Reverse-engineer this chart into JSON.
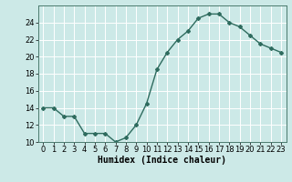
{
  "x": [
    0,
    1,
    2,
    3,
    4,
    5,
    6,
    7,
    8,
    9,
    10,
    11,
    12,
    13,
    14,
    15,
    16,
    17,
    18,
    19,
    20,
    21,
    22,
    23
  ],
  "y": [
    14,
    14,
    13,
    13,
    11,
    11,
    11,
    10,
    10.5,
    12,
    14.5,
    18.5,
    20.5,
    22,
    23,
    24.5,
    25,
    25,
    24,
    23.5,
    22.5,
    21.5,
    21,
    20.5
  ],
  "line_color": "#2e6b5e",
  "marker": "D",
  "marker_size": 2.0,
  "bg_color": "#cce9e7",
  "grid_color": "#ffffff",
  "xlabel": "Humidex (Indice chaleur)",
  "ylabel": "",
  "ylim": [
    10,
    26
  ],
  "xlim": [
    -0.5,
    23.5
  ],
  "yticks": [
    10,
    12,
    14,
    16,
    18,
    20,
    22,
    24
  ],
  "xticks": [
    0,
    1,
    2,
    3,
    4,
    5,
    6,
    7,
    8,
    9,
    10,
    11,
    12,
    13,
    14,
    15,
    16,
    17,
    18,
    19,
    20,
    21,
    22,
    23
  ],
  "xlabel_fontsize": 7,
  "tick_fontsize": 6,
  "line_width": 1.0
}
